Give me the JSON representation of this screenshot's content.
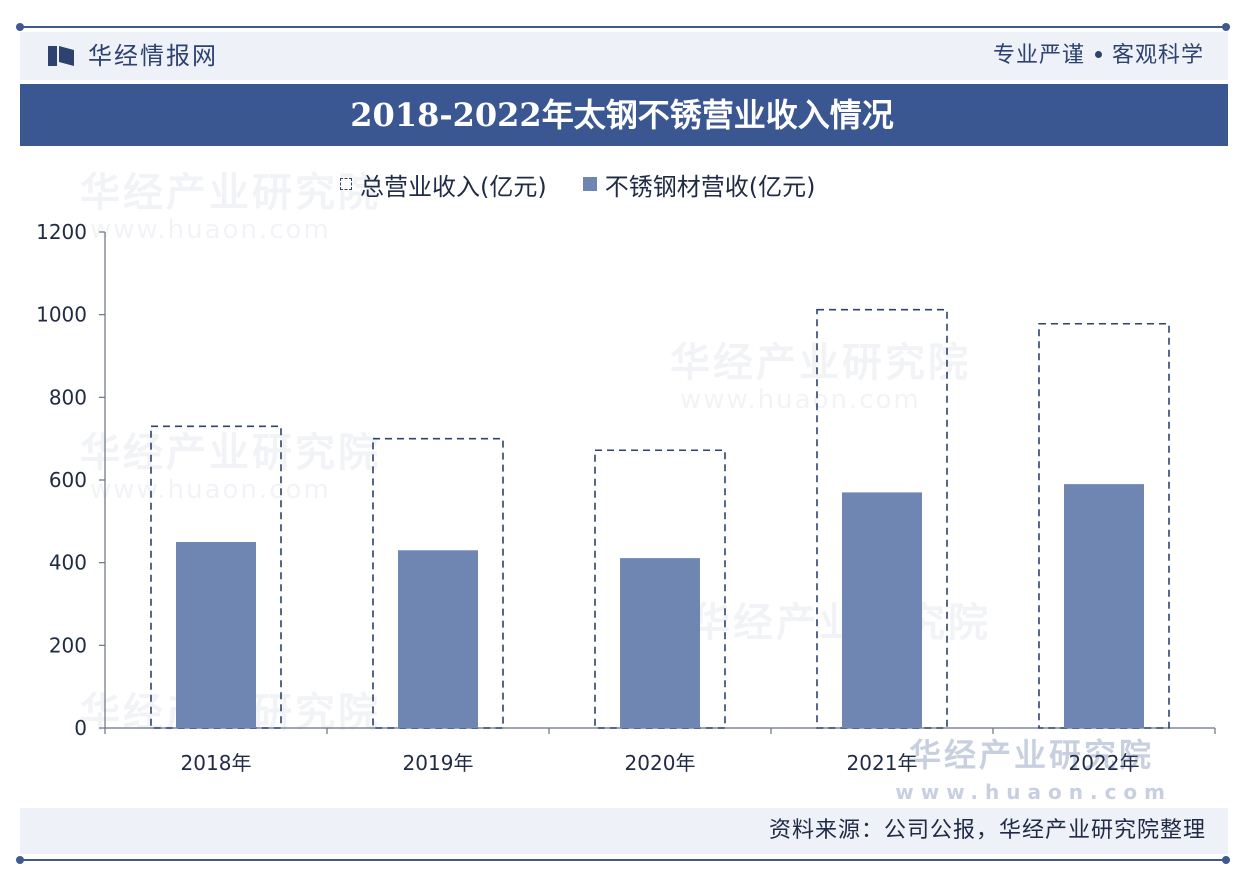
{
  "brand": {
    "name": "华经情报网",
    "slogan_left": "专业严谨",
    "slogan_right": "客观科学"
  },
  "title": "2018-2022年太钢不锈营业收入情况",
  "legend": {
    "total": "总营业收入(亿元)",
    "stainless": "不锈钢材营收(亿元)"
  },
  "source": "资料来源：公司公报，华经产业研究院整理",
  "watermark": {
    "text": "华经产业研究院",
    "url": "www.huaon.com"
  },
  "colors": {
    "accent": "#3b5791",
    "bar": "#6f86b2",
    "dashed": "#2d4270",
    "panel": "#eef1f7"
  },
  "chart_data": {
    "type": "bar",
    "categories": [
      "2018年",
      "2019年",
      "2020年",
      "2021年",
      "2022年"
    ],
    "series": [
      {
        "name": "总营业收入(亿元)",
        "values": [
          730,
          700,
          672,
          1012,
          978
        ],
        "style": "dashed-outline"
      },
      {
        "name": "不锈钢材营收(亿元)",
        "values": [
          450,
          430,
          411,
          570,
          590
        ],
        "style": "solid"
      }
    ],
    "y_ticks": [
      0,
      200,
      400,
      600,
      800,
      1000,
      1200
    ],
    "ylim": [
      0,
      1200
    ],
    "grid": false,
    "legend_position": "top"
  }
}
